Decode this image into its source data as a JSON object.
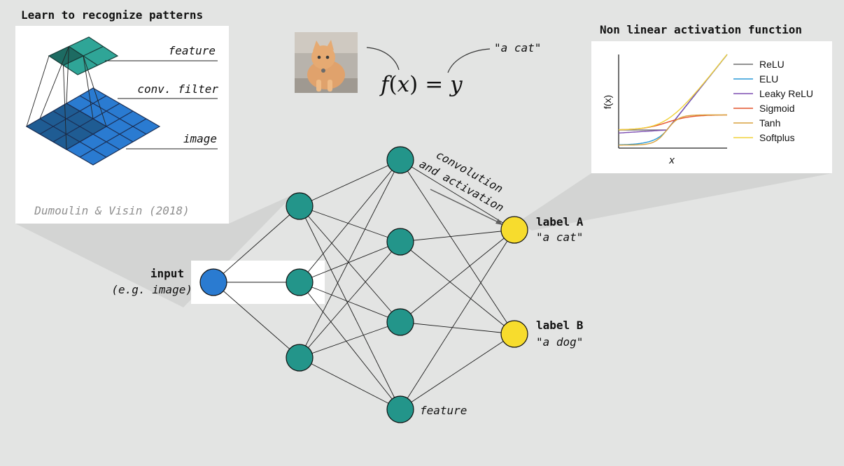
{
  "left_panel": {
    "title": "Learn to recognize patterns",
    "labels": {
      "feature": "feature",
      "filter": "conv. filter",
      "image": "image"
    },
    "citation": "Dumoulin & Visin (2018)"
  },
  "center": {
    "formula": {
      "f": "f",
      "open": "(",
      "x": "x",
      "close": ")",
      "eq": "=",
      "y": "y"
    },
    "output_quote": "\"a cat\""
  },
  "right_panel": {
    "title": "Non linear activation function",
    "chart_data": {
      "type": "line",
      "xlabel": "x",
      "ylabel": "f(x)",
      "legend_position": "right",
      "grid": false,
      "series": [
        {
          "name": "ReLU",
          "color": "#6f6f6f"
        },
        {
          "name": "ELU",
          "color": "#2a9ad7"
        },
        {
          "name": "Leaky ReLU",
          "color": "#7b4cb1"
        },
        {
          "name": "Sigmoid",
          "color": "#e4532a"
        },
        {
          "name": "Tanh",
          "color": "#d9a23d"
        },
        {
          "name": "Softplus",
          "color": "#f0d239"
        }
      ]
    }
  },
  "network": {
    "input_label": "input",
    "input_sublabel": "(e.g. image)",
    "edge_label_line1": "convolution",
    "edge_label_line2": "and activation",
    "hidden_node_label": "feature",
    "outputs": [
      {
        "label": "label A",
        "sublabel": "\"a cat\""
      },
      {
        "label": "label B",
        "sublabel": "\"a dog\""
      }
    ],
    "colors": {
      "input": "#2a7bd1",
      "hidden": "#23958a",
      "output": "#f7dc2d"
    }
  }
}
